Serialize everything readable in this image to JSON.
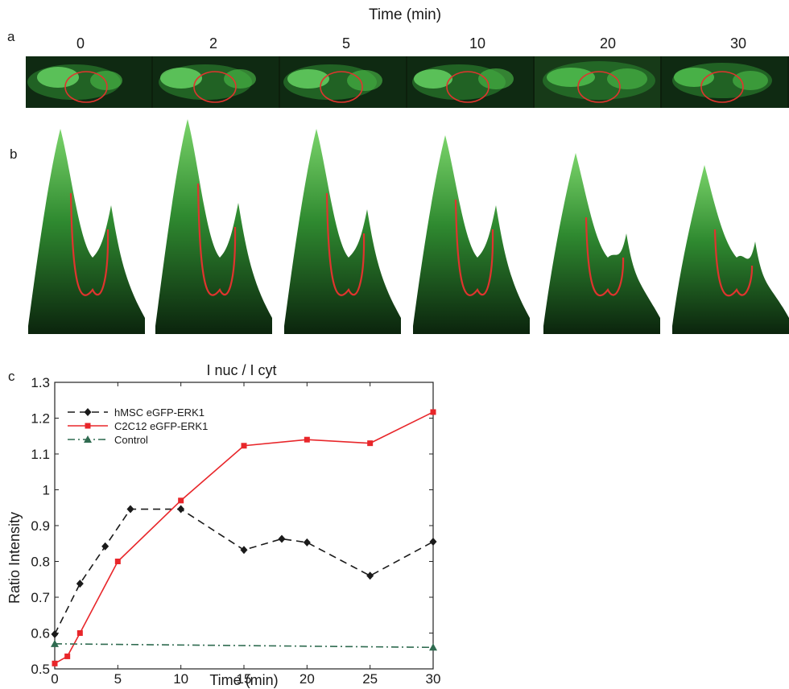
{
  "panel_labels": {
    "a": "a",
    "b": "b",
    "c": "c"
  },
  "panel_a": {
    "title": "Time (min)",
    "timepoints": [
      "0",
      "2",
      "5",
      "10",
      "20",
      "30"
    ]
  },
  "colors": {
    "hmsc": "#1a1a1a",
    "c2c12": "#e8262a",
    "control": "#2f6b50",
    "cell_green": "#3fc43f",
    "nucleus_ring": "#e0342e",
    "background_dark": "#0c1f0c"
  },
  "chart_data": {
    "type": "line",
    "title": "I nuc / I cyt",
    "xlabel": "Time (min)",
    "ylabel": "Ratio Intensity",
    "xlim": [
      0,
      30
    ],
    "ylim": [
      0.5,
      1.3
    ],
    "xticks": [
      "0",
      "5",
      "10",
      "15",
      "20",
      "25",
      "30"
    ],
    "yticks": [
      "0.5",
      "0.6",
      "0.7",
      "0.8",
      "0.9",
      "1",
      "1.1",
      "1.2",
      "1.3"
    ],
    "legend_position": "top-left",
    "series": [
      {
        "name": "hMSC eGFP-ERK1",
        "style": "dashed",
        "marker": "diamond",
        "x": [
          0,
          2,
          4,
          6,
          10,
          15,
          18,
          20,
          25,
          30
        ],
        "y": [
          0.597,
          0.738,
          0.842,
          0.946,
          0.946,
          0.832,
          0.863,
          0.853,
          0.76,
          0.855
        ]
      },
      {
        "name": "C2C12 eGFP-ERK1",
        "style": "solid",
        "marker": "square",
        "x": [
          0,
          1,
          2,
          5,
          10,
          15,
          20,
          25,
          30
        ],
        "y": [
          0.515,
          0.535,
          0.6,
          0.8,
          0.97,
          1.123,
          1.14,
          1.13,
          1.217
        ]
      },
      {
        "name": "Control",
        "style": "dashdot",
        "marker": "triangle",
        "x": [
          0,
          30
        ],
        "y": [
          0.57,
          0.56
        ]
      }
    ]
  }
}
